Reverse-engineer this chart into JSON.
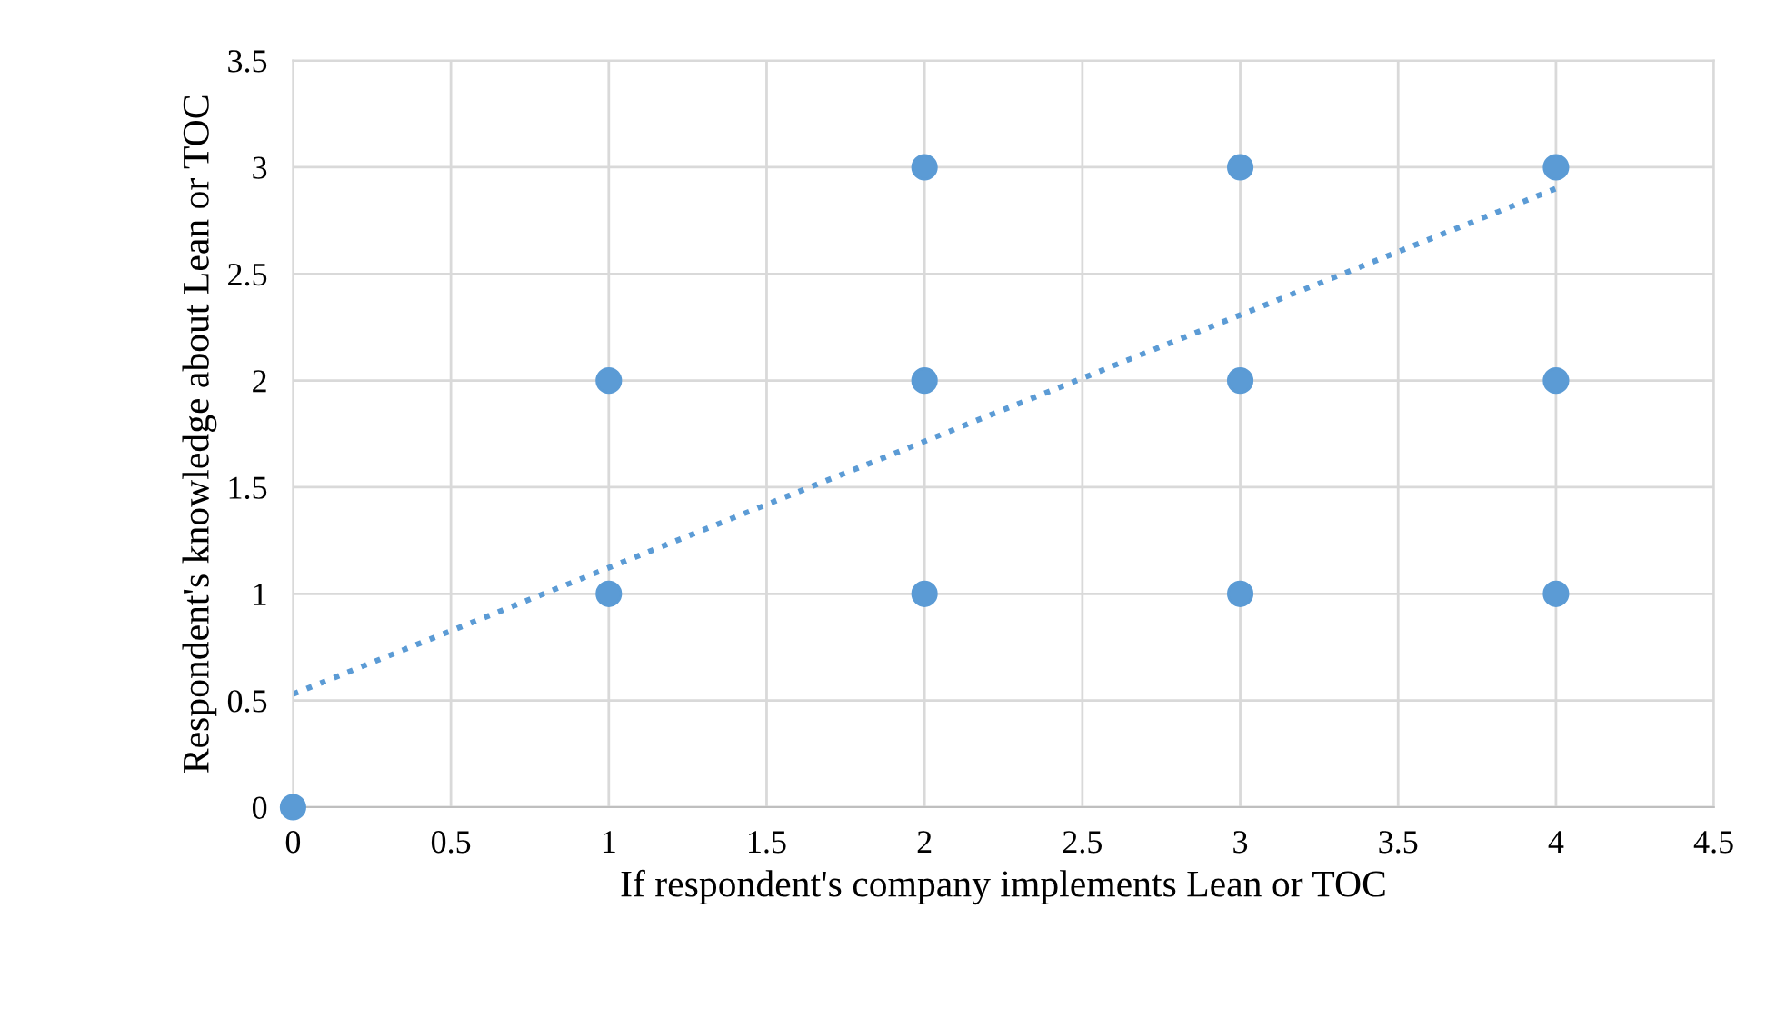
{
  "chart_data": {
    "type": "scatter",
    "xlabel": "If respondent's company implements Lean or TOC",
    "ylabel": "Respondent's knowledge about Lean or TOC",
    "xlim": [
      0,
      4.5
    ],
    "ylim": [
      0,
      3.5
    ],
    "xticks": [
      0,
      0.5,
      1,
      1.5,
      2,
      2.5,
      3,
      3.5,
      4,
      4.5
    ],
    "yticks": [
      0,
      0.5,
      1,
      1.5,
      2,
      2.5,
      3,
      3.5
    ],
    "grid": true,
    "series": [
      {
        "marker": "circle",
        "color": "#5b9bd5",
        "x": [
          0,
          1,
          1,
          2,
          2,
          2,
          3,
          3,
          3,
          4,
          4,
          4
        ],
        "values": [
          0,
          1,
          2,
          1,
          2,
          3,
          1,
          2,
          3,
          1,
          2,
          3
        ]
      },
      {
        "type": "line",
        "color": "#5b9bd5",
        "line_style": "dotted",
        "x": [
          0,
          4
        ],
        "values": [
          0.53,
          2.9
        ]
      }
    ]
  }
}
